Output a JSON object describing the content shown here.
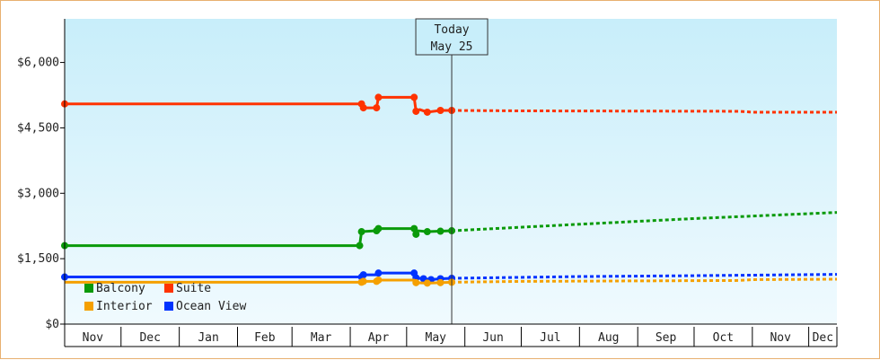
{
  "chart_data": {
    "type": "line",
    "title": "",
    "xlabel": "",
    "ylabel": "",
    "ylim": [
      0,
      7000
    ],
    "y_ticks": [
      {
        "value": 0,
        "label": "$0"
      },
      {
        "value": 1500,
        "label": "$1,500"
      },
      {
        "value": 3000,
        "label": "$3,000"
      },
      {
        "value": 4500,
        "label": "$4,500"
      },
      {
        "value": 6000,
        "label": "$6,000"
      }
    ],
    "x_range": [
      "2023-11-01",
      "2024-12-16"
    ],
    "x_ticks": [
      {
        "date": "2023-11-01",
        "end": "2023-12-01",
        "label": "Nov"
      },
      {
        "date": "2023-12-01",
        "end": "2024-01-01",
        "label": "Dec"
      },
      {
        "date": "2024-01-01",
        "end": "2024-02-01",
        "label": "Jan"
      },
      {
        "date": "2024-02-01",
        "end": "2024-03-01",
        "label": "Feb"
      },
      {
        "date": "2024-03-01",
        "end": "2024-04-01",
        "label": "Mar"
      },
      {
        "date": "2024-04-01",
        "end": "2024-05-01",
        "label": "Apr"
      },
      {
        "date": "2024-05-01",
        "end": "2024-06-01",
        "label": "May"
      },
      {
        "date": "2024-06-01",
        "end": "2024-07-01",
        "label": "Jun"
      },
      {
        "date": "2024-07-01",
        "end": "2024-08-01",
        "label": "Jul"
      },
      {
        "date": "2024-08-01",
        "end": "2024-09-01",
        "label": "Aug"
      },
      {
        "date": "2024-09-01",
        "end": "2024-10-01",
        "label": "Sep"
      },
      {
        "date": "2024-10-01",
        "end": "2024-11-01",
        "label": "Oct"
      },
      {
        "date": "2024-11-01",
        "end": "2024-12-01",
        "label": "Nov"
      },
      {
        "date": "2024-12-01",
        "end": "2024-12-16",
        "label": "Dec"
      }
    ],
    "today": {
      "date": "2024-05-25",
      "label_line1": "Today",
      "label_line2": "May 25"
    },
    "legend_position": "bottom-left",
    "grid": false,
    "series": [
      {
        "name": "Suite",
        "color": "#ff3300",
        "history": [
          {
            "x": "2023-11-01",
            "y": 5050
          },
          {
            "x": "2024-04-07",
            "y": 5050
          },
          {
            "x": "2024-04-08",
            "y": 4960
          },
          {
            "x": "2024-04-15",
            "y": 4960
          },
          {
            "x": "2024-04-16",
            "y": 5200
          },
          {
            "x": "2024-05-05",
            "y": 5200
          },
          {
            "x": "2024-05-06",
            "y": 4880
          },
          {
            "x": "2024-05-08",
            "y": 4920
          },
          {
            "x": "2024-05-12",
            "y": 4860
          },
          {
            "x": "2024-05-19",
            "y": 4900
          },
          {
            "x": "2024-05-25",
            "y": 4900
          }
        ],
        "markers": [
          "2023-11-01",
          "2024-04-07",
          "2024-04-08",
          "2024-04-15",
          "2024-04-16",
          "2024-05-05",
          "2024-05-06",
          "2024-05-12",
          "2024-05-19",
          "2024-05-25"
        ],
        "forecast": [
          {
            "x": "2024-05-25",
            "y": 4900
          },
          {
            "x": "2024-07-01",
            "y": 4890
          },
          {
            "x": "2024-10-25",
            "y": 4880
          },
          {
            "x": "2024-11-01",
            "y": 4860
          },
          {
            "x": "2024-12-16",
            "y": 4860
          }
        ]
      },
      {
        "name": "Balcony",
        "color": "#0a9a0a",
        "history": [
          {
            "x": "2023-11-01",
            "y": 1800
          },
          {
            "x": "2024-04-06",
            "y": 1800
          },
          {
            "x": "2024-04-07",
            "y": 2120
          },
          {
            "x": "2024-04-15",
            "y": 2140
          },
          {
            "x": "2024-04-16",
            "y": 2190
          },
          {
            "x": "2024-05-05",
            "y": 2190
          },
          {
            "x": "2024-05-06",
            "y": 2060
          },
          {
            "x": "2024-05-07",
            "y": 2140
          },
          {
            "x": "2024-05-12",
            "y": 2120
          },
          {
            "x": "2024-05-19",
            "y": 2130
          },
          {
            "x": "2024-05-25",
            "y": 2140
          }
        ],
        "markers": [
          "2023-11-01",
          "2024-04-06",
          "2024-04-07",
          "2024-04-15",
          "2024-04-16",
          "2024-05-05",
          "2024-05-06",
          "2024-05-12",
          "2024-05-19",
          "2024-05-25"
        ],
        "forecast": [
          {
            "x": "2024-05-25",
            "y": 2140
          },
          {
            "x": "2024-08-01",
            "y": 2290
          },
          {
            "x": "2024-10-01",
            "y": 2420
          },
          {
            "x": "2024-12-16",
            "y": 2560
          }
        ]
      },
      {
        "name": "Ocean View",
        "color": "#0033ff",
        "history": [
          {
            "x": "2023-11-01",
            "y": 1080
          },
          {
            "x": "2024-04-07",
            "y": 1080
          },
          {
            "x": "2024-04-08",
            "y": 1130
          },
          {
            "x": "2024-04-15",
            "y": 1130
          },
          {
            "x": "2024-04-16",
            "y": 1170
          },
          {
            "x": "2024-05-05",
            "y": 1170
          },
          {
            "x": "2024-05-06",
            "y": 1060
          },
          {
            "x": "2024-05-10",
            "y": 1040
          },
          {
            "x": "2024-05-14",
            "y": 1020
          },
          {
            "x": "2024-05-19",
            "y": 1040
          },
          {
            "x": "2024-05-25",
            "y": 1050
          }
        ],
        "markers": [
          "2023-11-01",
          "2024-04-07",
          "2024-04-08",
          "2024-04-16",
          "2024-05-05",
          "2024-05-06",
          "2024-05-10",
          "2024-05-14",
          "2024-05-19",
          "2024-05-25"
        ],
        "forecast": [
          {
            "x": "2024-05-25",
            "y": 1050
          },
          {
            "x": "2024-08-01",
            "y": 1090
          },
          {
            "x": "2024-10-01",
            "y": 1110
          },
          {
            "x": "2024-12-16",
            "y": 1140
          }
        ]
      },
      {
        "name": "Interior",
        "color": "#f5a000",
        "history": [
          {
            "x": "2023-11-01",
            "y": 960
          },
          {
            "x": "2024-04-07",
            "y": 960
          },
          {
            "x": "2024-04-08",
            "y": 980
          },
          {
            "x": "2024-04-15",
            "y": 980
          },
          {
            "x": "2024-04-16",
            "y": 1010
          },
          {
            "x": "2024-05-05",
            "y": 1010
          },
          {
            "x": "2024-05-06",
            "y": 950
          },
          {
            "x": "2024-05-12",
            "y": 940
          },
          {
            "x": "2024-05-19",
            "y": 950
          },
          {
            "x": "2024-05-25",
            "y": 960
          }
        ],
        "markers": [
          "2024-04-07",
          "2024-04-08",
          "2024-04-15",
          "2024-04-16",
          "2024-05-06",
          "2024-05-12",
          "2024-05-19",
          "2024-05-25"
        ],
        "forecast": [
          {
            "x": "2024-05-25",
            "y": 960
          },
          {
            "x": "2024-07-01",
            "y": 980
          },
          {
            "x": "2024-10-25",
            "y": 1000
          },
          {
            "x": "2024-11-01",
            "y": 1020
          },
          {
            "x": "2024-12-16",
            "y": 1030
          }
        ]
      }
    ],
    "legend": [
      {
        "name": "Balcony",
        "color": "#0a9a0a"
      },
      {
        "name": "Suite",
        "color": "#ff3300"
      },
      {
        "name": "Interior",
        "color": "#f5a000"
      },
      {
        "name": "Ocean View",
        "color": "#0033ff"
      }
    ]
  }
}
